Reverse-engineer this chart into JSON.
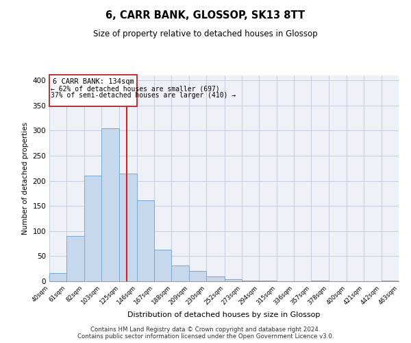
{
  "title": "6, CARR BANK, GLOSSOP, SK13 8TT",
  "subtitle": "Size of property relative to detached houses in Glossop",
  "xlabel": "Distribution of detached houses by size in Glossop",
  "ylabel": "Number of detached properties",
  "bar_color": "#c8d8ec",
  "bar_edge_color": "#7aaace",
  "vline_x": 134,
  "vline_color": "#cc2222",
  "annotation_title": "6 CARR BANK: 134sqm",
  "annotation_line1": "← 62% of detached houses are smaller (697)",
  "annotation_line2": "37% of semi-detached houses are larger (410) →",
  "bin_edges": [
    40,
    61,
    82,
    103,
    125,
    146,
    167,
    188,
    209,
    230,
    252,
    273,
    294,
    315,
    336,
    357,
    378,
    400,
    421,
    442,
    463
  ],
  "bin_counts": [
    17,
    90,
    211,
    305,
    214,
    161,
    63,
    31,
    20,
    10,
    4,
    2,
    1,
    0,
    0,
    1,
    0,
    0,
    0,
    2
  ],
  "tick_labels": [
    "40sqm",
    "61sqm",
    "82sqm",
    "103sqm",
    "125sqm",
    "146sqm",
    "167sqm",
    "188sqm",
    "209sqm",
    "230sqm",
    "252sqm",
    "273sqm",
    "294sqm",
    "315sqm",
    "336sqm",
    "357sqm",
    "378sqm",
    "400sqm",
    "421sqm",
    "442sqm",
    "463sqm"
  ],
  "ylim": [
    0,
    410
  ],
  "footer_line1": "Contains HM Land Registry data © Crown copyright and database right 2024.",
  "footer_line2": "Contains public sector information licensed under the Open Government Licence v3.0.",
  "background_color": "#eef1f8",
  "grid_color": "#c8cfe0"
}
